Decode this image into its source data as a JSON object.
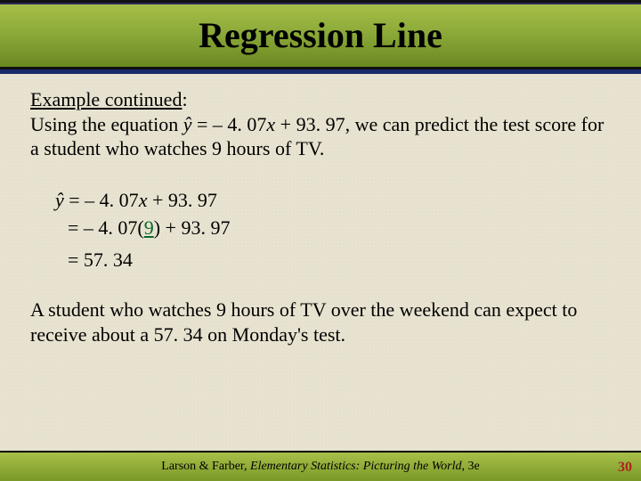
{
  "title": "Regression Line",
  "example_label": "Example continued",
  "colon": ":",
  "intro_prefix": "Using the equation ",
  "yhat": "ŷ",
  "eq_mid1": " = ",
  "slope": "– 4. 07",
  "xvar": "x",
  "eq_mid2": " + ",
  "intercept": "93. 97",
  "intro_suffix": ", we can predict the test score for a student who watches 9 hours of TV.",
  "calc_line1_a": "ŷ",
  "calc_line1_b": " = – 4. 07",
  "calc_line1_c": "x",
  "calc_line1_d": " + 93. 97",
  "calc_line2_a": "= – 4. 07(",
  "calc_line2_nine": "9",
  "calc_line2_b": ") + 93. 97",
  "calc_line3": "= 57. 34",
  "conclusion": "A student who watches 9 hours of TV over the weekend can expect to receive about a 57. 34 on Monday's test.",
  "footer_author": "Larson & Farber, ",
  "footer_title": "Elementary Statistics: Picturing the World",
  "footer_ed": ", 3e",
  "page_number": "30",
  "colors": {
    "background": "#e8e3d0",
    "title_gradient_top": "#a8c048",
    "title_gradient_bottom": "#6a8820",
    "accent_blue": "#1a2a6a",
    "nine_green": "#0a6a2a",
    "page_red": "#b02020"
  }
}
